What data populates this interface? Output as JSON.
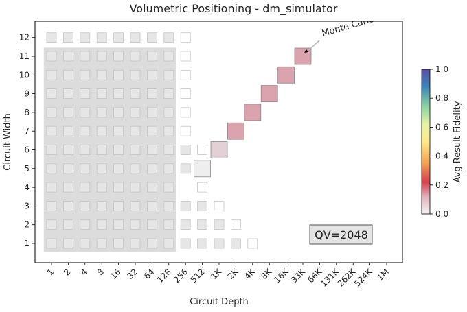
{
  "chart_data": {
    "type": "heatmap",
    "title": "Volumetric Positioning - dm_simulator",
    "xlabel": "Circuit Depth",
    "ylabel": "Circuit Width",
    "x_ticks": [
      "1",
      "2",
      "4",
      "8",
      "16",
      "32",
      "64",
      "128",
      "256",
      "512",
      "1K",
      "2K",
      "4K",
      "8K",
      "16K",
      "33K",
      "66K",
      "131K",
      "262K",
      "524K",
      "1M"
    ],
    "y_ticks": [
      "1",
      "2",
      "3",
      "4",
      "5",
      "6",
      "7",
      "8",
      "9",
      "10",
      "11",
      "12"
    ],
    "colorbar": {
      "label": "Avg Result Fidelity",
      "range": [
        0.0,
        1.0
      ],
      "ticks": [
        "0.0",
        "0.2",
        "0.4",
        "0.6",
        "0.8",
        "1.0"
      ],
      "colormap": "RdYlBu-like (low=pale grey/pink, high=blue)"
    },
    "annotation": {
      "text": "Monte Carlo",
      "points_to": {
        "depth": "33K",
        "width": 11
      }
    },
    "qv_badge": "QV=2048",
    "shaded_region": {
      "depth_range": [
        "1",
        "128"
      ],
      "width_range": [
        1,
        11
      ]
    },
    "background_grid": {
      "note": "light grey squares where circuits are shown with no fidelity",
      "cells": [
        {
          "width": 1,
          "depths": [
            "1",
            "2",
            "4",
            "8",
            "16",
            "32",
            "64",
            "128",
            "256",
            "512",
            "1K",
            "2K"
          ]
        },
        {
          "width": 2,
          "depths": [
            "1",
            "2",
            "4",
            "8",
            "16",
            "32",
            "64",
            "128",
            "256",
            "512",
            "1K"
          ]
        },
        {
          "width": 3,
          "depths": [
            "1",
            "2",
            "4",
            "8",
            "16",
            "32",
            "64",
            "128",
            "256",
            "512"
          ]
        },
        {
          "width": 4,
          "depths": [
            "1",
            "2",
            "4",
            "8",
            "16",
            "32",
            "64",
            "128"
          ]
        },
        {
          "width": 5,
          "depths": [
            "1",
            "2",
            "4",
            "8",
            "16",
            "32",
            "64",
            "128",
            "256"
          ]
        },
        {
          "width": 6,
          "depths": [
            "1",
            "2",
            "4",
            "8",
            "16",
            "32",
            "64",
            "128",
            "256"
          ]
        },
        {
          "width": 7,
          "depths": [
            "1",
            "2",
            "4",
            "8",
            "16",
            "32",
            "64",
            "128"
          ]
        },
        {
          "width": 8,
          "depths": [
            "1",
            "2",
            "4",
            "8",
            "16",
            "32",
            "64",
            "128"
          ]
        },
        {
          "width": 9,
          "depths": [
            "1",
            "2",
            "4",
            "8",
            "16",
            "32",
            "64",
            "128"
          ]
        },
        {
          "width": 10,
          "depths": [
            "1",
            "2",
            "4",
            "8",
            "16",
            "32",
            "64",
            "128"
          ]
        },
        {
          "width": 11,
          "depths": [
            "1",
            "2",
            "4",
            "8",
            "16",
            "32",
            "64",
            "128"
          ]
        },
        {
          "width": 12,
          "depths": [
            "1",
            "2",
            "4",
            "8",
            "16",
            "32",
            "64",
            "128"
          ]
        }
      ]
    },
    "empty_cells": [
      {
        "width": 1,
        "depth": "4K"
      },
      {
        "width": 2,
        "depth": "2K"
      },
      {
        "width": 3,
        "depth": "1K"
      },
      {
        "width": 4,
        "depth": "512"
      },
      {
        "width": 6,
        "depth": "512"
      },
      {
        "width": 7,
        "depth": "256"
      },
      {
        "width": 8,
        "depth": "256"
      },
      {
        "width": 9,
        "depth": "256"
      },
      {
        "width": 10,
        "depth": "256"
      },
      {
        "width": 11,
        "depth": "256"
      },
      {
        "width": 12,
        "depth": "256"
      }
    ],
    "fidelity_cells": [
      {
        "width": 5,
        "depth": "512",
        "fidelity": 0.03,
        "size": "large",
        "color": "#eeeeee"
      },
      {
        "width": 6,
        "depth": "1K",
        "fidelity": 0.08,
        "size": "large",
        "color": "#e2d0d5"
      },
      {
        "width": 7,
        "depth": "2K",
        "fidelity": 0.15,
        "size": "large",
        "color": "#dba3ad"
      },
      {
        "width": 8,
        "depth": "4K",
        "fidelity": 0.15,
        "size": "large",
        "color": "#dba3ad"
      },
      {
        "width": 9,
        "depth": "8K",
        "fidelity": 0.15,
        "size": "large",
        "color": "#dba3ad"
      },
      {
        "width": 10,
        "depth": "16K",
        "fidelity": 0.15,
        "size": "large",
        "color": "#dba3ad"
      },
      {
        "width": 11,
        "depth": "33K",
        "fidelity": 0.15,
        "size": "large",
        "color": "#dba3ad"
      }
    ]
  }
}
